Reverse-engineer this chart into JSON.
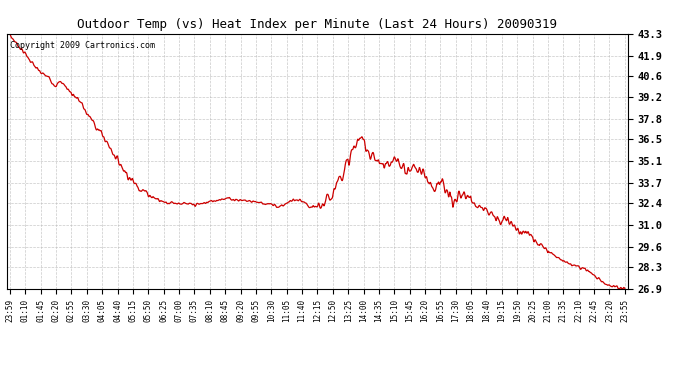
{
  "title": "Outdoor Temp (vs) Heat Index per Minute (Last 24 Hours) 20090319",
  "copyright_text": "Copyright 2009 Cartronics.com",
  "line_color": "#cc0000",
  "background_color": "#ffffff",
  "grid_color": "#bbbbbb",
  "yticks": [
    26.9,
    28.3,
    29.6,
    31.0,
    32.4,
    33.7,
    35.1,
    36.5,
    37.8,
    39.2,
    40.6,
    41.9,
    43.3
  ],
  "ylim": [
    26.9,
    43.3
  ],
  "xtick_labels": [
    "23:59",
    "01:10",
    "01:45",
    "02:20",
    "02:55",
    "03:30",
    "04:05",
    "04:40",
    "05:15",
    "05:50",
    "06:25",
    "07:00",
    "07:35",
    "08:10",
    "08:45",
    "09:20",
    "09:55",
    "10:30",
    "11:05",
    "11:40",
    "12:15",
    "12:50",
    "13:25",
    "14:00",
    "14:35",
    "15:10",
    "15:45",
    "16:20",
    "16:55",
    "17:30",
    "18:05",
    "18:40",
    "19:15",
    "19:50",
    "20:25",
    "21:00",
    "21:35",
    "22:10",
    "22:45",
    "23:20",
    "23:55"
  ],
  "key_points": [
    [
      0,
      43.2
    ],
    [
      1,
      42.0
    ],
    [
      2,
      40.8
    ],
    [
      2.5,
      40.5
    ],
    [
      3,
      40.0
    ],
    [
      3.3,
      40.2
    ],
    [
      3.7,
      39.8
    ],
    [
      4,
      39.5
    ],
    [
      4.5,
      39.0
    ],
    [
      5,
      38.2
    ],
    [
      6,
      36.8
    ],
    [
      7,
      35.2
    ],
    [
      8,
      33.8
    ],
    [
      9,
      33.0
    ],
    [
      10,
      32.5
    ],
    [
      11,
      32.4
    ],
    [
      12,
      32.3
    ],
    [
      13,
      32.5
    ],
    [
      14,
      32.7
    ],
    [
      15,
      32.6
    ],
    [
      16,
      32.5
    ],
    [
      16.5,
      32.4
    ],
    [
      17,
      32.3
    ],
    [
      17.5,
      32.2
    ],
    [
      18,
      32.4
    ],
    [
      18.5,
      32.6
    ],
    [
      19,
      32.5
    ],
    [
      19.3,
      32.3
    ],
    [
      19.6,
      32.1
    ],
    [
      20,
      32.2
    ],
    [
      20.5,
      32.4
    ],
    [
      21,
      33.2
    ],
    [
      21.5,
      34.2
    ],
    [
      22,
      35.0
    ],
    [
      22.3,
      35.8
    ],
    [
      22.6,
      36.3
    ],
    [
      23,
      36.5
    ],
    [
      23.3,
      35.8
    ],
    [
      23.6,
      35.4
    ],
    [
      24,
      35.1
    ],
    [
      24.3,
      34.8
    ],
    [
      24.5,
      35.0
    ],
    [
      24.7,
      34.6
    ],
    [
      25,
      35.2
    ],
    [
      25.3,
      35.0
    ],
    [
      25.6,
      34.7
    ],
    [
      26,
      34.5
    ],
    [
      26.3,
      34.8
    ],
    [
      26.6,
      34.5
    ],
    [
      27,
      34.2
    ],
    [
      27.3,
      33.8
    ],
    [
      27.6,
      33.5
    ],
    [
      28,
      33.8
    ],
    [
      28.3,
      33.2
    ],
    [
      28.6,
      32.8
    ],
    [
      29,
      32.5
    ],
    [
      29.3,
      32.7
    ],
    [
      29.5,
      33.0
    ],
    [
      29.8,
      32.8
    ],
    [
      30,
      32.6
    ],
    [
      30.3,
      32.4
    ],
    [
      30.6,
      32.2
    ],
    [
      31,
      32.0
    ],
    [
      31.5,
      31.5
    ],
    [
      32,
      31.2
    ],
    [
      32.3,
      31.4
    ],
    [
      32.6,
      31.1
    ],
    [
      33,
      30.8
    ],
    [
      33.5,
      30.5
    ],
    [
      34,
      30.2
    ],
    [
      34.5,
      29.8
    ],
    [
      35,
      29.4
    ],
    [
      35.5,
      29.0
    ],
    [
      36,
      28.7
    ],
    [
      36.5,
      28.5
    ],
    [
      37,
      28.3
    ],
    [
      37.5,
      28.1
    ],
    [
      38,
      27.8
    ],
    [
      38.5,
      27.4
    ],
    [
      39,
      27.1
    ],
    [
      39.5,
      27.0
    ],
    [
      40,
      26.9
    ]
  ]
}
